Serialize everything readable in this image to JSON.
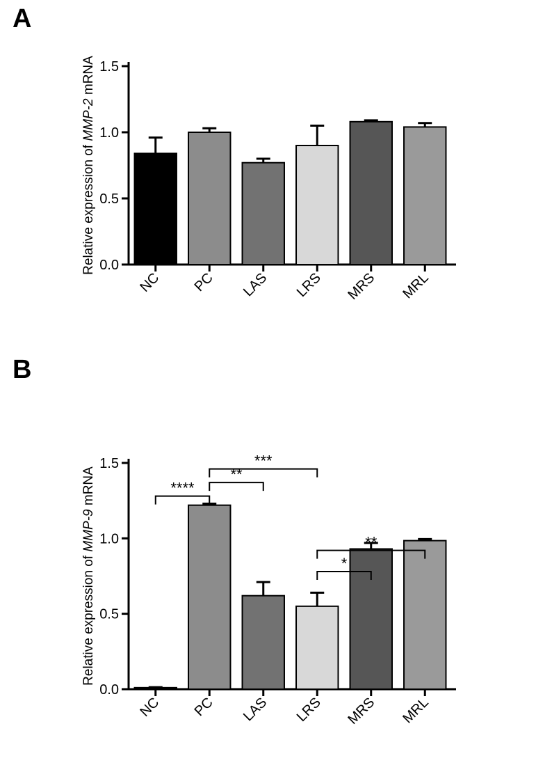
{
  "panels": {
    "A": "A",
    "B": "B"
  },
  "chartA": {
    "type": "bar",
    "ylabel_plain": "Relative expression of ",
    "ylabel_italic": "MMP-2",
    "ylabel_plain2": " mRNA",
    "ylim": [
      0,
      1.5
    ],
    "yticks": [
      0.0,
      0.5,
      1.0,
      1.5
    ],
    "ytick_labels": [
      "0.0",
      "0.5",
      "1.0",
      "1.5"
    ],
    "categories": [
      "NC",
      "PC",
      "LAS",
      "LRS",
      "MRS",
      "MRL"
    ],
    "values": [
      0.84,
      1.0,
      0.77,
      0.9,
      1.08,
      1.04
    ],
    "errors": [
      0.12,
      0.03,
      0.03,
      0.15,
      0.01,
      0.03
    ],
    "bar_colors": [
      "#000000",
      "#8c8c8c",
      "#727272",
      "#d8d8d8",
      "#565656",
      "#9a9a9a"
    ],
    "bar_border": "#000000",
    "background": "#ffffff",
    "axis_color": "#000000",
    "bar_width": 0.78,
    "font_size": 20
  },
  "chartB": {
    "type": "bar",
    "ylabel_plain": "Relative expression of ",
    "ylabel_italic": "MMP-9",
    "ylabel_plain2": " mRNA",
    "ylim": [
      0,
      1.5
    ],
    "yticks": [
      0.0,
      0.5,
      1.0,
      1.5
    ],
    "ytick_labels": [
      "0.0",
      "0.5",
      "1.0",
      "1.5"
    ],
    "categories": [
      "NC",
      "PC",
      "LAS",
      "LRS",
      "MRS",
      "MRL"
    ],
    "values": [
      0.01,
      1.22,
      0.62,
      0.55,
      0.93,
      0.985
    ],
    "errors": [
      0.003,
      0.01,
      0.09,
      0.09,
      0.04,
      0.01
    ],
    "bar_colors": [
      "#000000",
      "#8c8c8c",
      "#727272",
      "#d8d8d8",
      "#565656",
      "#9a9a9a"
    ],
    "bar_border": "#000000",
    "background": "#ffffff",
    "axis_color": "#000000",
    "bar_width": 0.78,
    "font_size": 20,
    "sig": [
      {
        "from": 0,
        "to": 1,
        "level": 0,
        "label": "****"
      },
      {
        "from": 1,
        "to": 2,
        "level": 1,
        "label": "**"
      },
      {
        "from": 1,
        "to": 3,
        "level": 2,
        "label": "***"
      },
      {
        "from": 3,
        "to": 4,
        "level": -1,
        "label": "*"
      },
      {
        "from": 3,
        "to": 5,
        "level": -2,
        "label": "**"
      }
    ]
  }
}
